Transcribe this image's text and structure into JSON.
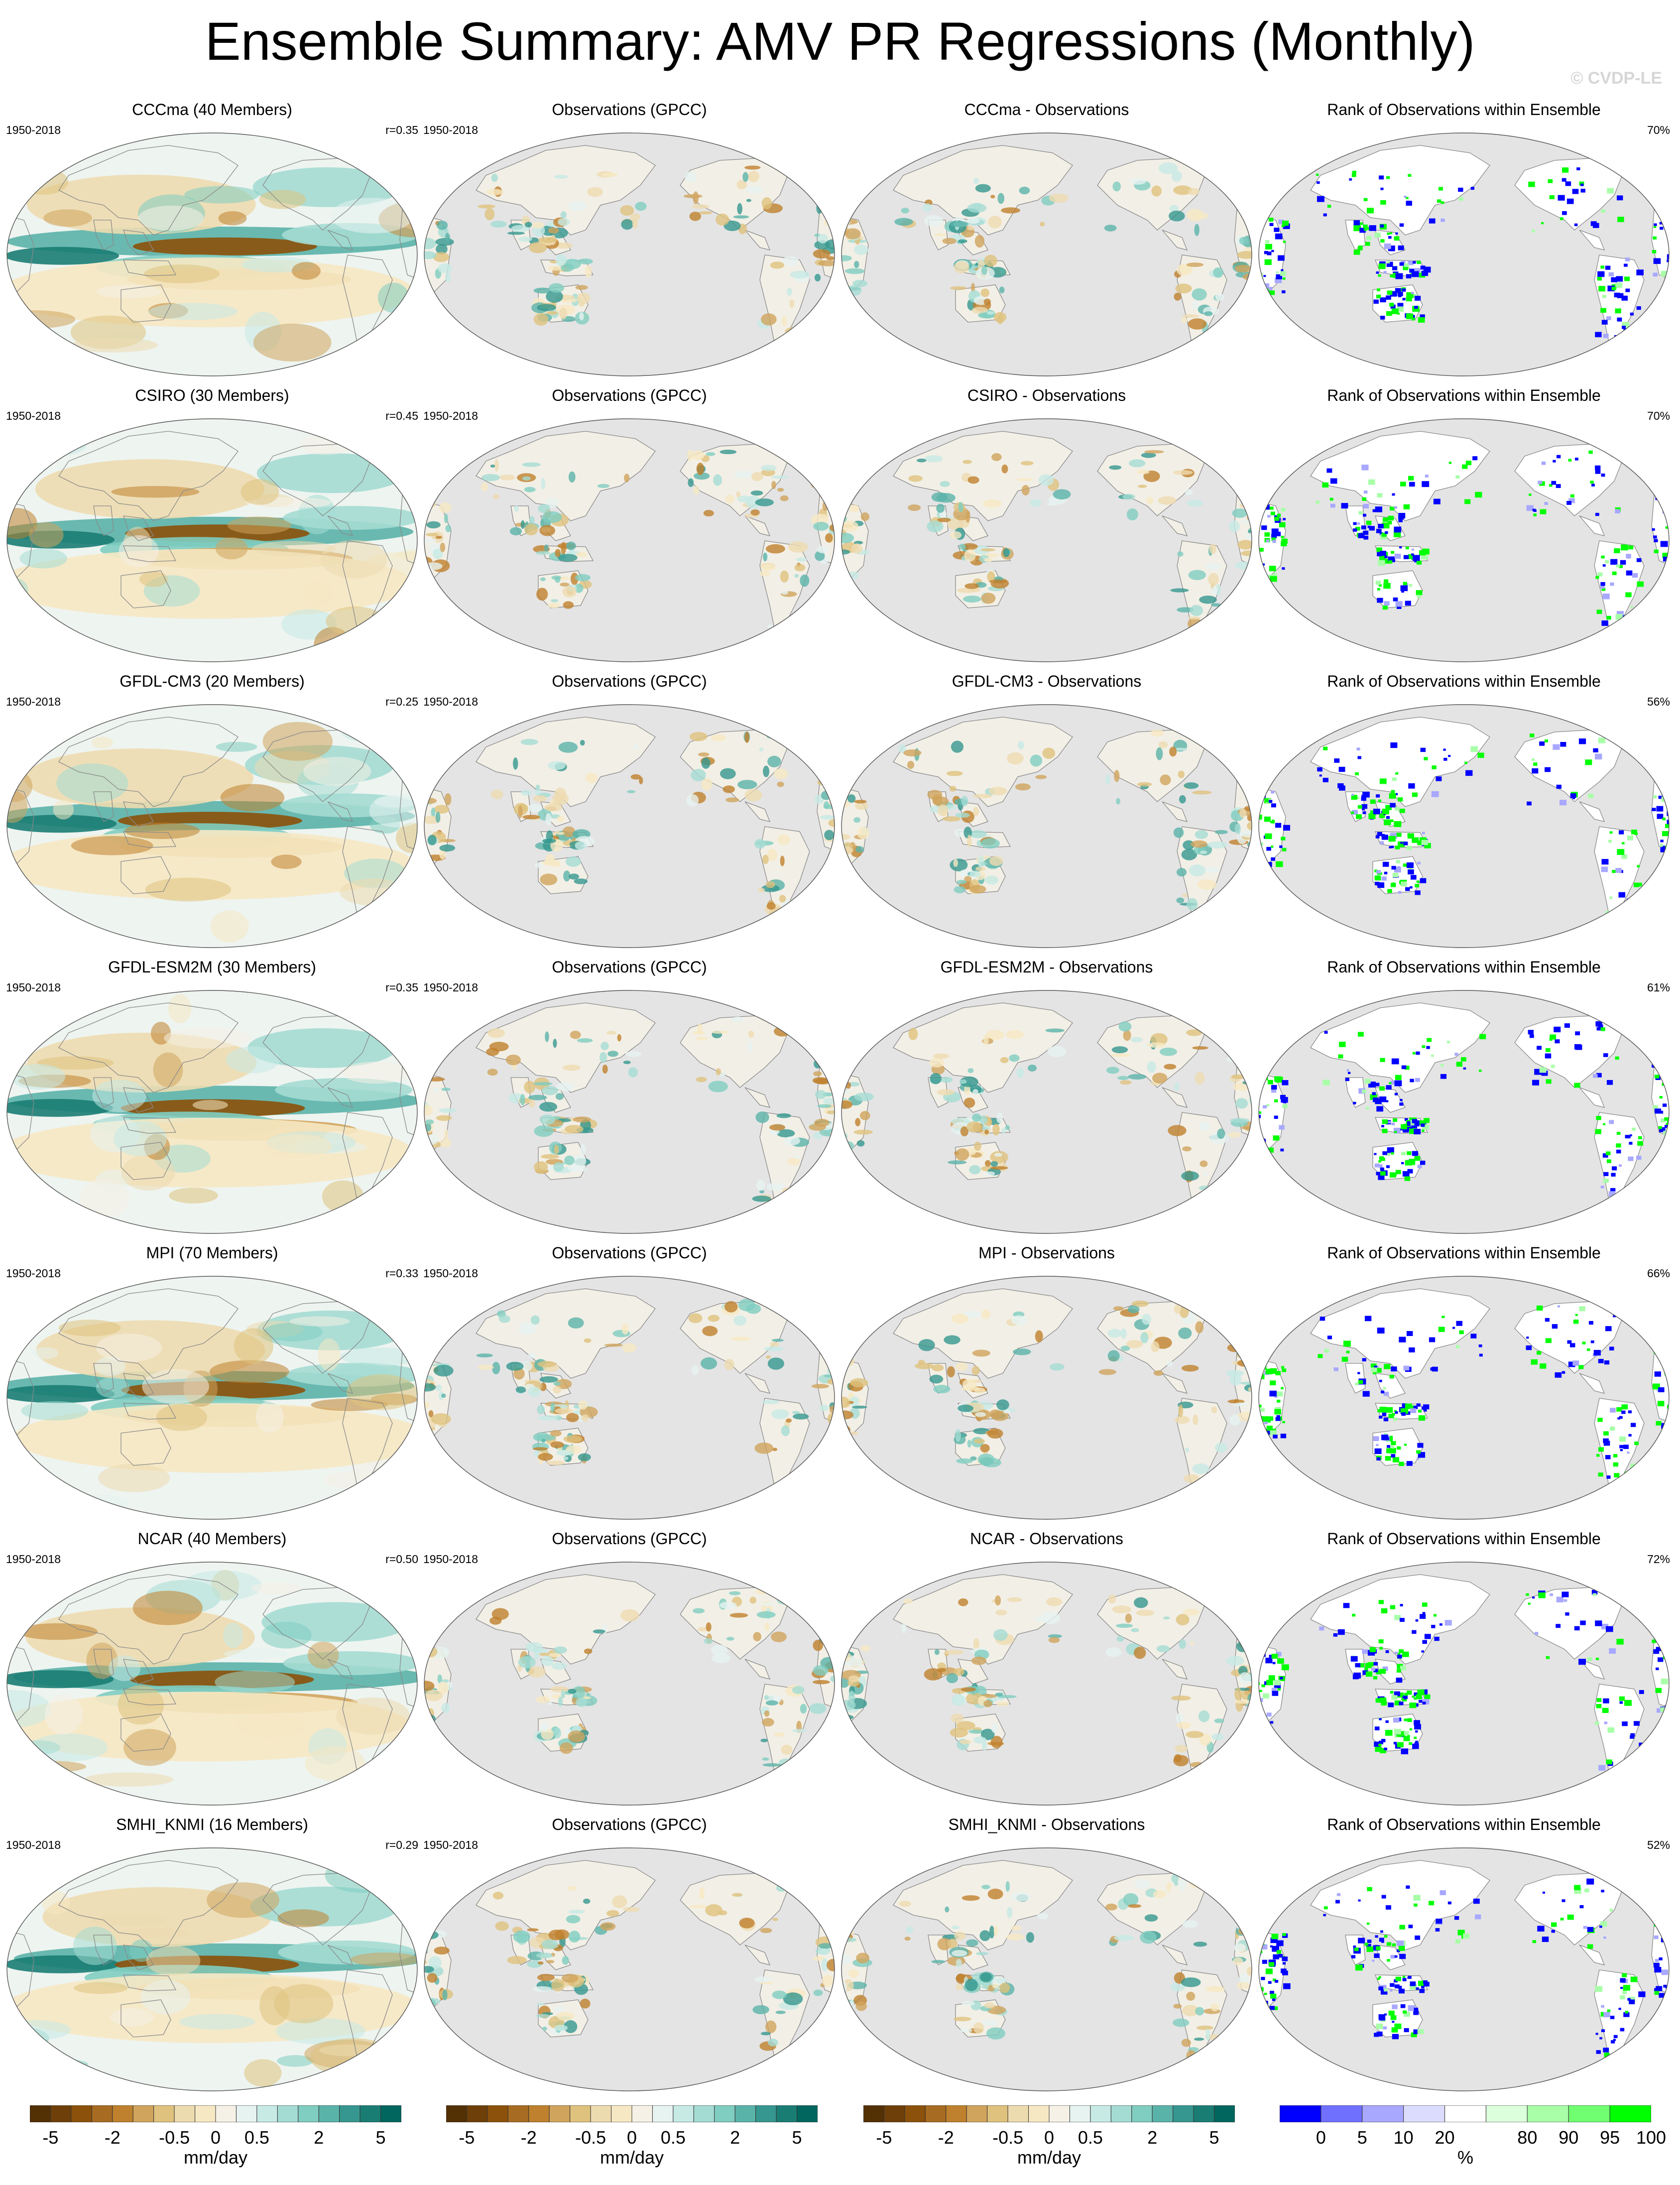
{
  "title": "Ensemble Summary: AMV PR Regressions (Monthly)",
  "copyright": "© CVDP-LE",
  "period": "1950-2018",
  "obs_title": "Observations (GPCC)",
  "rank_title": "Rank of Observations within Ensemble",
  "rows": [
    {
      "model_title": "CCCma (40 Members)",
      "r": "r=0.35",
      "diff_title": "CCCma - Observations",
      "rank_pct": "70%"
    },
    {
      "model_title": "CSIRO (30 Members)",
      "r": "r=0.45",
      "diff_title": "CSIRO - Observations",
      "rank_pct": "70%"
    },
    {
      "model_title": "GFDL-CM3 (20 Members)",
      "r": "r=0.25",
      "diff_title": "GFDL-CM3 - Observations",
      "rank_pct": "56%"
    },
    {
      "model_title": "GFDL-ESM2M (30 Members)",
      "r": "r=0.35",
      "diff_title": "GFDL-ESM2M - Observations",
      "rank_pct": "61%"
    },
    {
      "model_title": "MPI (70 Members)",
      "r": "r=0.33",
      "diff_title": "MPI - Observations",
      "rank_pct": "66%"
    },
    {
      "model_title": "NCAR (40 Members)",
      "r": "r=0.50",
      "diff_title": "NCAR - Observations",
      "rank_pct": "72%"
    },
    {
      "model_title": "SMHI_KNMI (16 Members)",
      "r": "r=0.29",
      "diff_title": "SMHI_KNMI - Observations",
      "rank_pct": "52%"
    }
  ],
  "colorbars": [
    {
      "kind": "brbg",
      "unit": "mm/day",
      "ticks": [
        "-5",
        "-2",
        "-0.5",
        "0",
        "0.5",
        "2",
        "5"
      ],
      "tick_index": [
        1,
        4,
        7,
        9,
        11,
        14,
        17
      ],
      "nboxes": 18,
      "colors": [
        "#543005",
        "#6e3f09",
        "#8c510a",
        "#a76b22",
        "#bf812d",
        "#d0a45c",
        "#dfc27d",
        "#eddbb0",
        "#f6e8c3",
        "#f5f1e6",
        "#e6f3f1",
        "#c7eae5",
        "#a4dcd3",
        "#80cdc1",
        "#5ab3a9",
        "#35978f",
        "#1a7d74",
        "#01665e"
      ]
    },
    {
      "kind": "brbg",
      "unit": "mm/day",
      "ticks": [
        "-5",
        "-2",
        "-0.5",
        "0",
        "0.5",
        "2",
        "5"
      ],
      "tick_index": [
        1,
        4,
        7,
        9,
        11,
        14,
        17
      ],
      "nboxes": 18,
      "colors": [
        "#543005",
        "#6e3f09",
        "#8c510a",
        "#a76b22",
        "#bf812d",
        "#d0a45c",
        "#dfc27d",
        "#eddbb0",
        "#f6e8c3",
        "#f5f1e6",
        "#e6f3f1",
        "#c7eae5",
        "#a4dcd3",
        "#80cdc1",
        "#5ab3a9",
        "#35978f",
        "#1a7d74",
        "#01665e"
      ]
    },
    {
      "kind": "brbg",
      "unit": "mm/day",
      "ticks": [
        "-5",
        "-2",
        "-0.5",
        "0",
        "0.5",
        "2",
        "5"
      ],
      "tick_index": [
        1,
        4,
        7,
        9,
        11,
        14,
        17
      ],
      "nboxes": 18,
      "colors": [
        "#543005",
        "#6e3f09",
        "#8c510a",
        "#a76b22",
        "#bf812d",
        "#d0a45c",
        "#dfc27d",
        "#eddbb0",
        "#f6e8c3",
        "#f5f1e6",
        "#e6f3f1",
        "#c7eae5",
        "#a4dcd3",
        "#80cdc1",
        "#5ab3a9",
        "#35978f",
        "#1a7d74",
        "#01665e"
      ]
    },
    {
      "kind": "rank",
      "unit": "%",
      "ticks": [
        "0",
        "5",
        "10",
        "20",
        "80",
        "90",
        "95",
        "100"
      ],
      "tick_index": [
        1,
        2,
        3,
        4,
        6,
        7,
        8,
        9
      ],
      "nboxes": 9,
      "colors": [
        "#0000ff",
        "#7070ff",
        "#a8a8ff",
        "#dcdcff",
        "#ffffff",
        "#dcffdc",
        "#a8ffa8",
        "#70ff70",
        "#00ff00"
      ]
    }
  ],
  "palette": {
    "ocean_gray": "#e4e4e4",
    "rank_neg": "#0000ff",
    "rank_pos": "#00ff00"
  }
}
